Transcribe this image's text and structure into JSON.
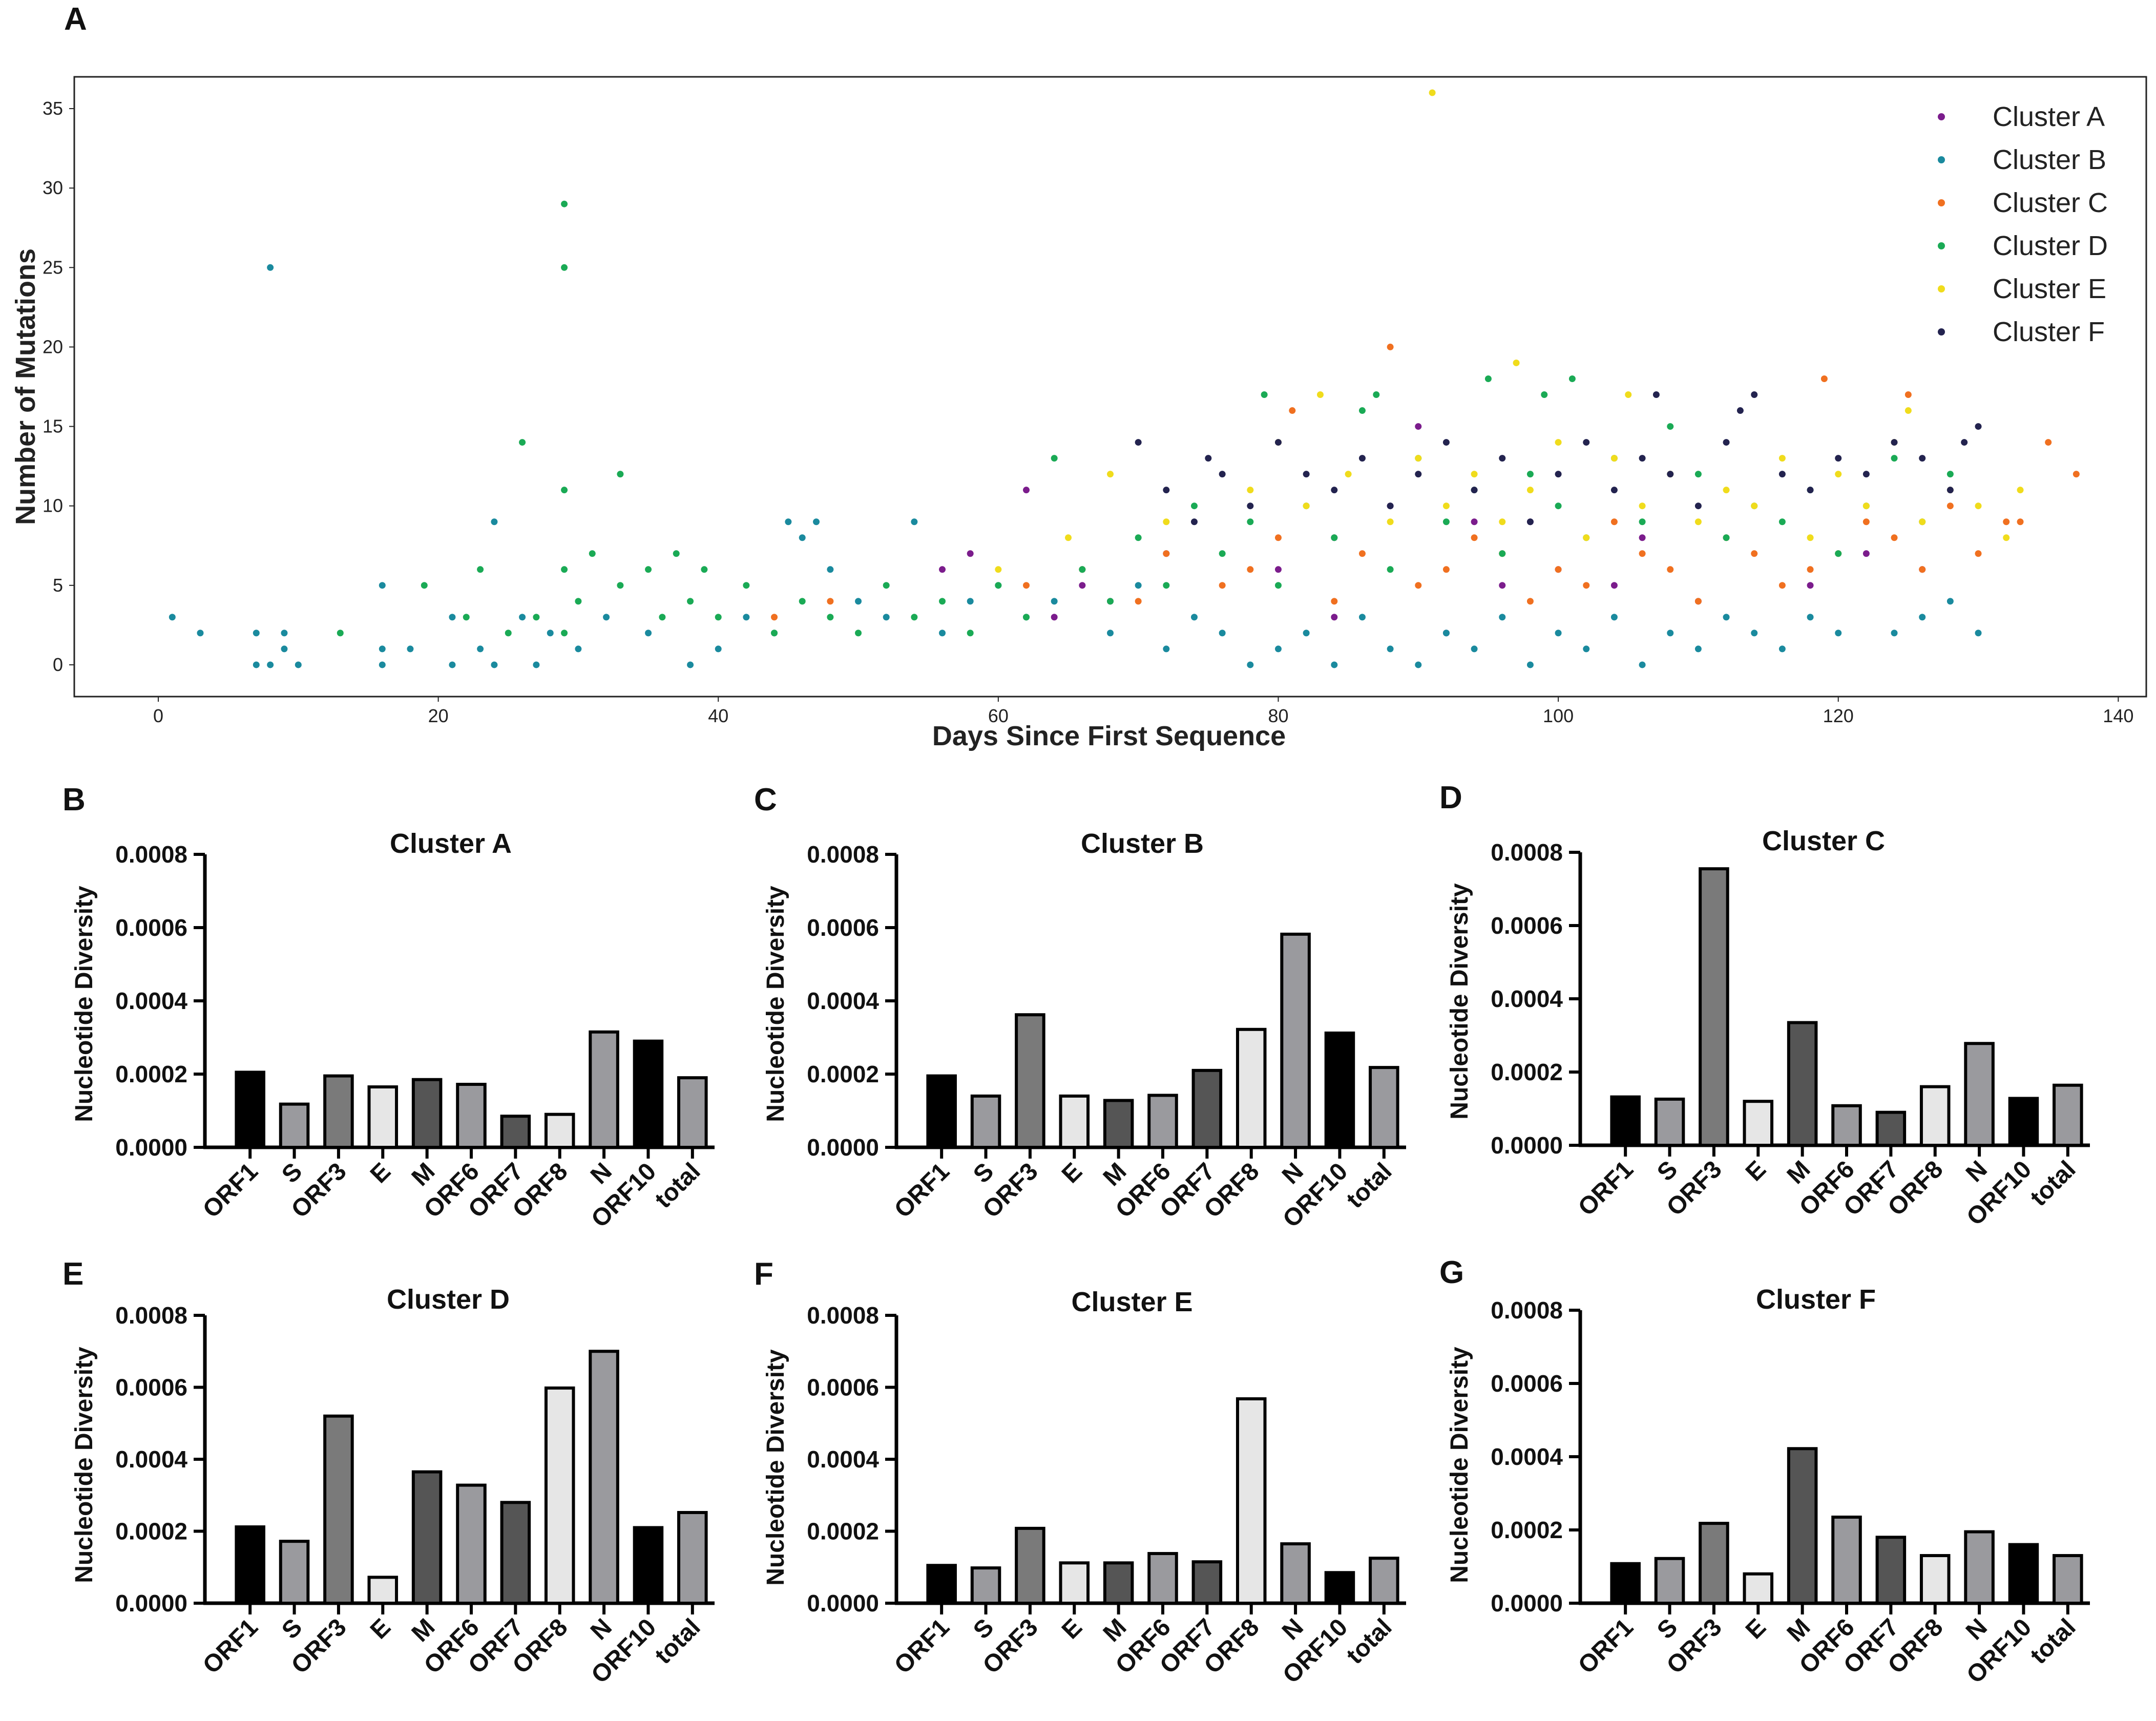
{
  "figure": {
    "panel_letters": [
      "A",
      "B",
      "C",
      "D",
      "E",
      "F",
      "G"
    ]
  },
  "chart_data": [
    {
      "type": "scatter",
      "panel": "A",
      "xlabel": "Days Since First Sequence",
      "ylabel": "Number of Mutations",
      "xlim": [
        -6,
        142
      ],
      "ylim": [
        -2,
        37
      ],
      "xticks": [
        0,
        20,
        40,
        60,
        80,
        100,
        120,
        140
      ],
      "yticks": [
        0,
        5,
        10,
        15,
        20,
        25,
        30,
        35
      ],
      "legend_position": "top-right",
      "series": [
        {
          "name": "Cluster A",
          "color": "#7b1c8c",
          "x": [
            56,
            58,
            62,
            64,
            66,
            68,
            72,
            80,
            84,
            88,
            90,
            94,
            96,
            100,
            106,
            110,
            118,
            122,
            126,
            84,
            92,
            98,
            104
          ],
          "y": [
            6,
            7,
            11,
            3,
            5,
            4,
            7,
            6,
            8,
            10,
            15,
            9,
            5,
            6,
            8,
            4,
            5,
            7,
            6,
            3,
            2,
            9,
            5
          ]
        },
        {
          "name": "Cluster B",
          "color": "#1a8a9e",
          "x": [
            1,
            3,
            7,
            7,
            8,
            8,
            9,
            9,
            10,
            16,
            16,
            16,
            18,
            21,
            21,
            23,
            24,
            24,
            26,
            27,
            28,
            30,
            32,
            35,
            38,
            40,
            42,
            44,
            45,
            46,
            47,
            48,
            50,
            52,
            54,
            56,
            58,
            60,
            62,
            64,
            66,
            68,
            70,
            72,
            74,
            76,
            78,
            80,
            82,
            84,
            86,
            88,
            90,
            92,
            94,
            96,
            98,
            100,
            102,
            104,
            106,
            108,
            110,
            112,
            114,
            116,
            118,
            120,
            124,
            126,
            128,
            130
          ],
          "y": [
            3,
            2,
            0,
            2,
            0,
            25,
            1,
            2,
            0,
            0,
            1,
            5,
            1,
            0,
            3,
            1,
            0,
            9,
            3,
            0,
            2,
            1,
            3,
            2,
            0,
            1,
            3,
            2,
            9,
            8,
            9,
            6,
            4,
            3,
            9,
            2,
            4,
            5,
            3,
            4,
            6,
            2,
            5,
            1,
            3,
            2,
            0,
            1,
            2,
            0,
            3,
            1,
            0,
            2,
            1,
            3,
            0,
            2,
            1,
            3,
            0,
            2,
            1,
            3,
            2,
            1,
            3,
            2,
            2,
            3,
            4,
            2
          ]
        },
        {
          "name": "Cluster C",
          "color": "#f07020",
          "x": [
            44,
            48,
            62,
            66,
            70,
            72,
            76,
            78,
            80,
            81,
            84,
            86,
            88,
            90,
            92,
            94,
            96,
            98,
            100,
            102,
            104,
            106,
            108,
            110,
            112,
            114,
            116,
            118,
            119,
            120,
            122,
            124,
            125,
            126,
            128,
            130,
            132,
            133,
            135,
            137
          ],
          "y": [
            3,
            4,
            5,
            6,
            4,
            7,
            5,
            6,
            8,
            16,
            4,
            7,
            20,
            5,
            6,
            8,
            7,
            4,
            6,
            5,
            9,
            7,
            6,
            4,
            8,
            7,
            5,
            6,
            18,
            7,
            9,
            8,
            17,
            6,
            10,
            7,
            9,
            9,
            14,
            12
          ]
        },
        {
          "name": "Cluster D",
          "color": "#1aaa55",
          "x": [
            13,
            19,
            22,
            23,
            25,
            26,
            27,
            29,
            29,
            29,
            29,
            29,
            30,
            31,
            33,
            33,
            35,
            36,
            37,
            38,
            39,
            40,
            42,
            44,
            46,
            48,
            50,
            52,
            54,
            56,
            58,
            60,
            62,
            64,
            66,
            68,
            70,
            72,
            74,
            76,
            78,
            79,
            80,
            82,
            84,
            86,
            87,
            88,
            90,
            92,
            94,
            95,
            96,
            98,
            99,
            100,
            101,
            102,
            104,
            106,
            108,
            110,
            112,
            114,
            116,
            118,
            120,
            122,
            124,
            126,
            128
          ],
          "y": [
            2,
            5,
            3,
            6,
            2,
            14,
            3,
            29,
            25,
            11,
            6,
            2,
            4,
            7,
            12,
            5,
            6,
            3,
            7,
            4,
            6,
            3,
            5,
            2,
            4,
            3,
            2,
            5,
            3,
            4,
            2,
            5,
            3,
            13,
            6,
            4,
            8,
            5,
            10,
            7,
            9,
            17,
            5,
            10,
            8,
            16,
            17,
            6,
            13,
            9,
            11,
            18,
            7,
            12,
            17,
            10,
            18,
            8,
            13,
            9,
            15,
            12,
            8,
            10,
            9,
            11,
            7,
            10,
            13,
            9,
            12
          ]
        },
        {
          "name": "Cluster E",
          "color": "#f0dc1c",
          "x": [
            60,
            65,
            68,
            72,
            78,
            80,
            82,
            83,
            85,
            88,
            90,
            91,
            92,
            94,
            96,
            97,
            98,
            100,
            102,
            104,
            105,
            106,
            108,
            110,
            112,
            114,
            116,
            118,
            120,
            122,
            124,
            125,
            126,
            128,
            130,
            132,
            133
          ],
          "y": [
            6,
            8,
            12,
            9,
            11,
            14,
            10,
            17,
            12,
            9,
            13,
            36,
            10,
            12,
            9,
            19,
            11,
            14,
            8,
            13,
            17,
            10,
            12,
            9,
            11,
            10,
            13,
            8,
            12,
            10,
            14,
            16,
            9,
            11,
            10,
            8,
            11
          ]
        },
        {
          "name": "Cluster F",
          "color": "#23234f",
          "x": [
            70,
            72,
            74,
            75,
            76,
            78,
            80,
            82,
            84,
            86,
            88,
            90,
            92,
            94,
            96,
            98,
            100,
            102,
            104,
            106,
            107,
            108,
            110,
            112,
            113,
            114,
            116,
            118,
            120,
            122,
            124,
            126,
            128,
            129,
            130
          ],
          "y": [
            14,
            11,
            9,
            13,
            12,
            10,
            14,
            12,
            11,
            13,
            10,
            12,
            14,
            11,
            13,
            9,
            12,
            14,
            11,
            13,
            17,
            12,
            10,
            14,
            16,
            17,
            12,
            11,
            13,
            12,
            14,
            13,
            11,
            14,
            15
          ]
        }
      ]
    },
    {
      "type": "bar",
      "panel": "B",
      "title": "Cluster A",
      "ylabel": "Nucleotide Diversity",
      "ylim": [
        0,
        0.0008
      ],
      "yticks": [
        "0.0000",
        "0.0002",
        "0.0004",
        "0.0006",
        "0.0008"
      ],
      "categories": [
        "ORF1",
        "S",
        "ORF3",
        "E",
        "M",
        "ORF6",
        "ORF7",
        "ORF8",
        "N",
        "ORF10",
        "total"
      ],
      "values": [
        0.000205,
        0.000118,
        0.000195,
        0.000165,
        0.000185,
        0.000172,
        8.5e-05,
        9e-05,
        0.000315,
        0.00029,
        0.00019
      ]
    },
    {
      "type": "bar",
      "panel": "C",
      "title": "Cluster B",
      "ylabel": "Nucleotide Diversity",
      "ylim": [
        0,
        0.0008
      ],
      "yticks": [
        "0.0000",
        "0.0002",
        "0.0004",
        "0.0006",
        "0.0008"
      ],
      "categories": [
        "ORF1",
        "S",
        "ORF3",
        "E",
        "M",
        "ORF6",
        "ORF7",
        "ORF8",
        "N",
        "ORF10",
        "total"
      ],
      "values": [
        0.000195,
        0.00014,
        0.000362,
        0.00014,
        0.000128,
        0.000142,
        0.00021,
        0.000322,
        0.000582,
        0.000312,
        0.000218
      ]
    },
    {
      "type": "bar",
      "panel": "D",
      "title": "Cluster C",
      "ylabel": "Nucleotide Diversity",
      "ylim": [
        0,
        0.0008
      ],
      "yticks": [
        "0.0000",
        "0.0002",
        "0.0004",
        "0.0006",
        "0.0008"
      ],
      "categories": [
        "ORF1",
        "S",
        "ORF3",
        "E",
        "M",
        "ORF6",
        "ORF7",
        "ORF8",
        "N",
        "ORF10",
        "total"
      ],
      "values": [
        0.000132,
        0.000126,
        0.000755,
        0.00012,
        0.000335,
        0.000108,
        9e-05,
        0.00016,
        0.000278,
        0.000128,
        0.000164
      ]
    },
    {
      "type": "bar",
      "panel": "E",
      "title": "Cluster D",
      "ylabel": "Nucleotide Diversity",
      "ylim": [
        0,
        0.0008
      ],
      "yticks": [
        "0.0000",
        "0.0002",
        "0.0004",
        "0.0006",
        "0.0008"
      ],
      "categories": [
        "ORF1",
        "S",
        "ORF3",
        "E",
        "M",
        "ORF6",
        "ORF7",
        "ORF8",
        "N",
        "ORF10",
        "total"
      ],
      "values": [
        0.000212,
        0.000172,
        0.00052,
        7.2e-05,
        0.000365,
        0.000328,
        0.00028,
        0.000598,
        0.0007,
        0.00021,
        0.000252
      ]
    },
    {
      "type": "bar",
      "panel": "F",
      "title": "Cluster E",
      "ylabel": "Nucleotide Diversity",
      "ylim": [
        0,
        0.0008
      ],
      "yticks": [
        "0.0000",
        "0.0002",
        "0.0004",
        "0.0006",
        "0.0008"
      ],
      "categories": [
        "ORF1",
        "S",
        "ORF3",
        "E",
        "M",
        "ORF6",
        "ORF7",
        "ORF8",
        "N",
        "ORF10",
        "total"
      ],
      "values": [
        0.000105,
        9.8e-05,
        0.000208,
        0.000112,
        0.000112,
        0.000138,
        0.000115,
        0.000568,
        0.000165,
        8.5e-05,
        0.000125
      ]
    },
    {
      "type": "bar",
      "panel": "G",
      "title": "Cluster F",
      "ylabel": "Nucleotide Diversity",
      "ylim": [
        0,
        0.0008
      ],
      "yticks": [
        "0.0000",
        "0.0002",
        "0.0004",
        "0.0006",
        "0.0008"
      ],
      "categories": [
        "ORF1",
        "S",
        "ORF3",
        "E",
        "M",
        "ORF6",
        "ORF7",
        "ORF8",
        "N",
        "ORF10",
        "total"
      ],
      "values": [
        0.000108,
        0.000122,
        0.000218,
        8e-05,
        0.000422,
        0.000235,
        0.00018,
        0.00013,
        0.000195,
        0.00016,
        0.00013
      ]
    }
  ],
  "bar_colors": {
    "ORF1": "#000000",
    "S": "#9a9a9e",
    "ORF3": "#7a7a7a",
    "E": "#e6e6e6",
    "M": "#555555",
    "ORF6": "#9a9a9e",
    "ORF7": "#555555",
    "ORF8": "#e6e6e6",
    "N": "#9a9a9e",
    "ORF10": "#000000",
    "total": "#9a9a9e"
  }
}
